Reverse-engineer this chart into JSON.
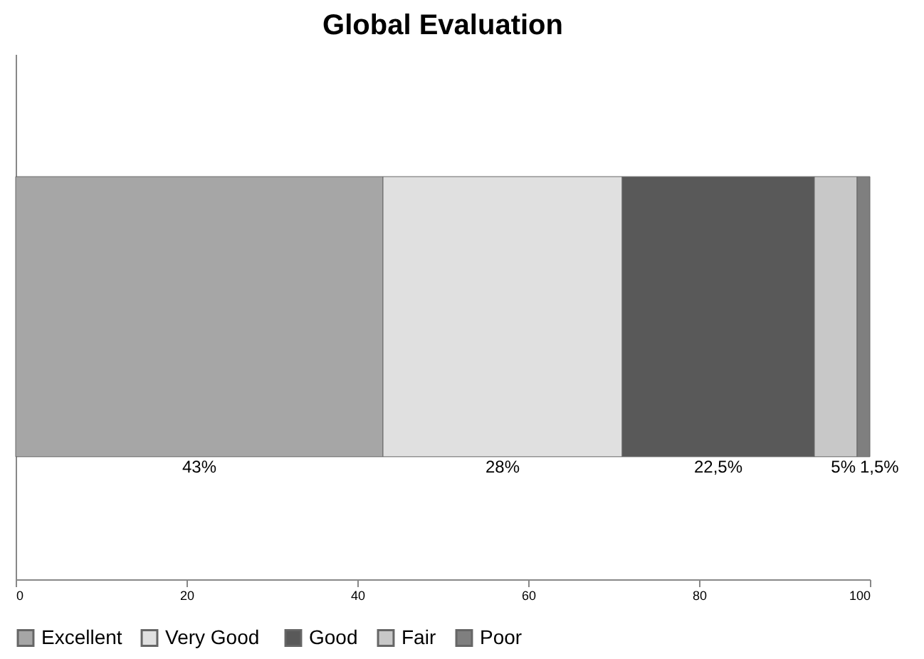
{
  "chart_data": {
    "type": "bar",
    "title": "Global Evaluation",
    "orientation": "horizontal",
    "stacked": true,
    "categories": [
      null
    ],
    "series": [
      {
        "name": "Excellent",
        "color": "#a6a6a6",
        "values": [
          43
        ],
        "value_labels": [
          "43%"
        ]
      },
      {
        "name": "Very  Good",
        "color": "#e0e0e0",
        "values": [
          28
        ],
        "value_labels": [
          "28%"
        ]
      },
      {
        "name": "Good",
        "color": "#595959",
        "values": [
          22.5
        ],
        "value_labels": [
          "22,5%"
        ]
      },
      {
        "name": "Fair",
        "color": "#c8c8c8",
        "values": [
          5
        ],
        "value_labels": [
          "5%"
        ]
      },
      {
        "name": "Poor",
        "color": "#7f7f7f",
        "values": [
          1.5
        ],
        "value_labels": [
          "1,5%"
        ]
      }
    ],
    "xlim": [
      0,
      100
    ],
    "xticks": [
      0,
      20,
      40,
      60,
      80,
      100
    ],
    "grid": false,
    "legend": "bottom",
    "tick_labels": "x"
  }
}
